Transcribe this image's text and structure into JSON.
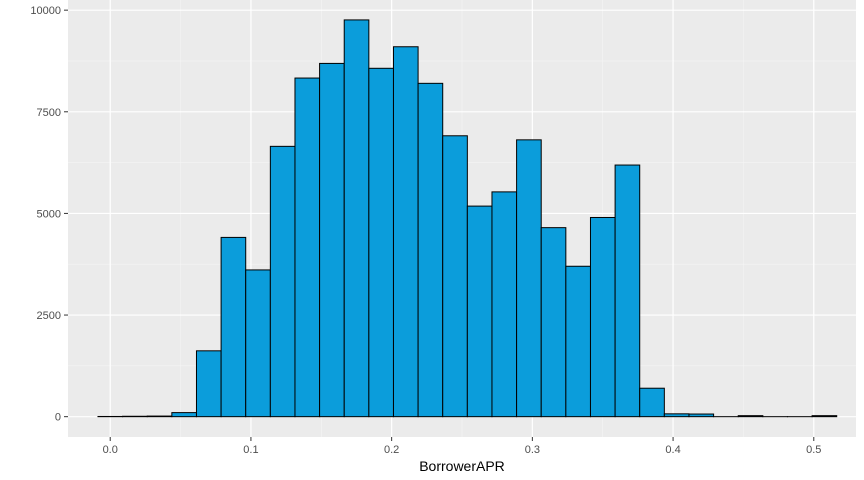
{
  "chart_data": {
    "type": "bar",
    "xlabel": "BorrowerAPR",
    "ylabel": "",
    "xlim": [
      -0.03,
      0.53
    ],
    "ylim": [
      -500,
      10250
    ],
    "x_ticks": [
      0.0,
      0.1,
      0.2,
      0.3,
      0.4,
      0.5
    ],
    "x_tick_labels": [
      "0.0",
      "0.1",
      "0.2",
      "0.3",
      "0.4",
      "0.5"
    ],
    "y_ticks": [
      0,
      2500,
      5000,
      7500,
      10000
    ],
    "y_tick_labels": [
      "0",
      "2500",
      "5000",
      "7500",
      "10000"
    ],
    "grid": true,
    "bin_edges": [
      -0.0087,
      0.0088,
      0.0263,
      0.0438,
      0.0613,
      0.0788,
      0.0963,
      0.1138,
      0.1313,
      0.1488,
      0.1663,
      0.1838,
      0.2013,
      0.2188,
      0.2363,
      0.2538,
      0.2713,
      0.2888,
      0.3063,
      0.3238,
      0.3413,
      0.3588,
      0.3763,
      0.3938,
      0.4113,
      0.4288,
      0.4463,
      0.4638,
      0.4813,
      0.4988,
      0.5163
    ],
    "values": [
      5,
      10,
      15,
      100,
      1620,
      4410,
      3610,
      6650,
      8330,
      8690,
      9760,
      8570,
      9100,
      8200,
      6910,
      5180,
      5530,
      6810,
      4650,
      3700,
      4900,
      6190,
      700,
      70,
      65,
      0,
      25,
      0,
      0,
      25
    ],
    "colors": {
      "bar_fill": "#0b9ddb",
      "bar_stroke": "#000000",
      "panel_background": "#ebebeb",
      "grid_major": "#ffffff",
      "grid_minor": "#f5f5f5",
      "tick_text": "#4d4d4d",
      "title_text": "#000000"
    }
  }
}
